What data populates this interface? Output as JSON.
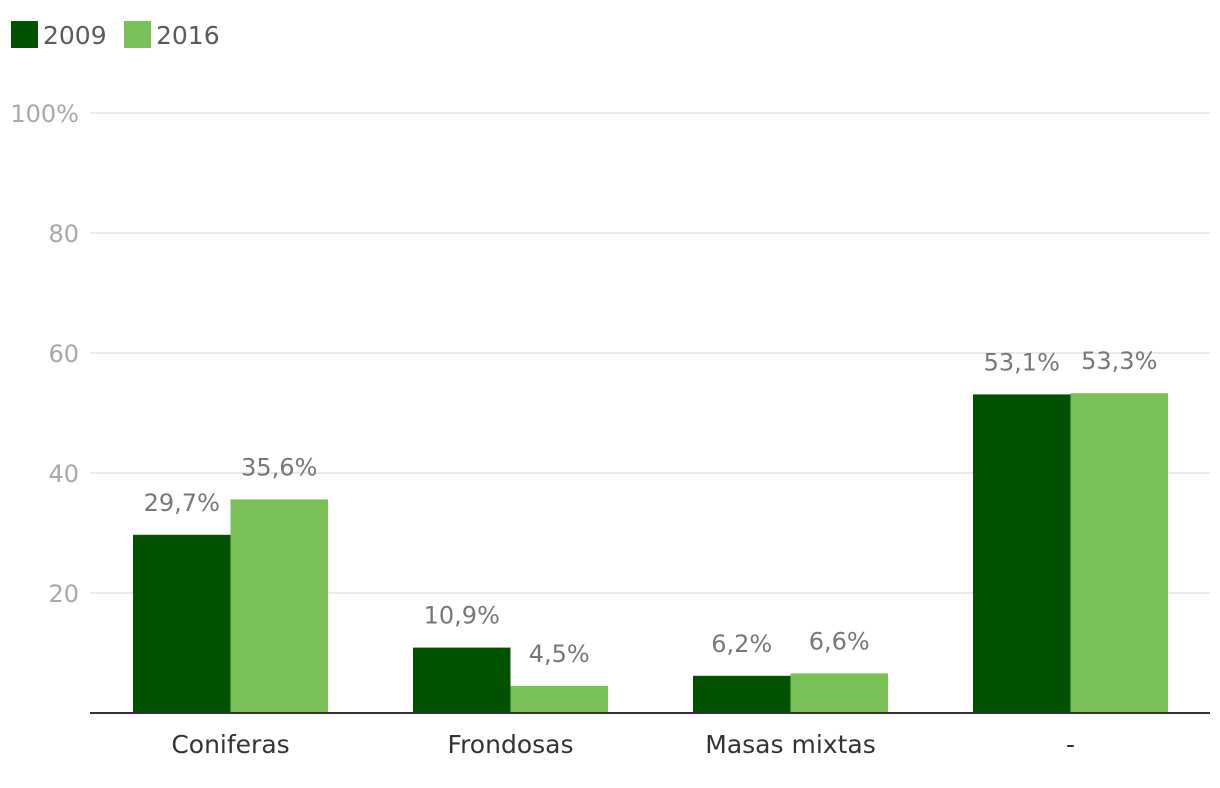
{
  "chart_data": {
    "type": "bar",
    "title": "",
    "xlabel": "",
    "ylabel": "",
    "categories": [
      "Coniferas",
      "Frondosas",
      "Masas mixtas",
      "-"
    ],
    "series": [
      {
        "name": "2009",
        "color": "#035202",
        "values": [
          29.7,
          10.9,
          6.2,
          53.1
        ],
        "labels": [
          "29,7%",
          "10,9%",
          "6,2%",
          "53,1%"
        ]
      },
      {
        "name": "2016",
        "color": "#79c057",
        "values": [
          35.6,
          4.5,
          6.6,
          53.3
        ],
        "labels": [
          "35,6%",
          "4,5%",
          "6,6%",
          "53,3%"
        ]
      }
    ],
    "ylim": [
      0,
      100
    ],
    "yticks": [
      {
        "value": 20,
        "label": "20"
      },
      {
        "value": 40,
        "label": "40"
      },
      {
        "value": 60,
        "label": "60"
      },
      {
        "value": 80,
        "label": "80"
      },
      {
        "value": 100,
        "label": "100%"
      }
    ],
    "grid": true,
    "legend_position": "top-left"
  }
}
